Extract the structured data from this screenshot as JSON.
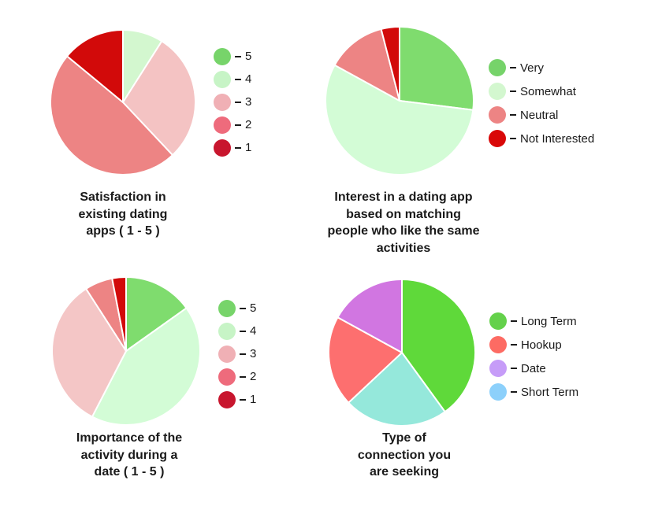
{
  "chart_data": [
    {
      "type": "pie",
      "title": "Satisfaction in existing dating apps ( 1 - 5 )",
      "title_lines": [
        "Satisfaction in",
        "existing dating",
        "apps ( 1 - 5 )"
      ],
      "labels": [
        "5",
        "4",
        "3",
        "2",
        "1"
      ],
      "values": [
        0,
        9,
        29,
        48,
        14
      ],
      "colors": [
        "#77d46a",
        "#d3f7cf",
        "#f4c3c3",
        "#ed8484",
        "#d20a0a"
      ],
      "legend_colors": [
        "#77d46a",
        "#c7f4c6",
        "#f0b0b5",
        "#ee6b7c",
        "#c8162e"
      ],
      "start_angle_deg": 0
    },
    {
      "type": "pie",
      "title": "Interest in a dating app based on matching people who like the same activities",
      "title_lines": [
        "Interest in a dating app",
        "based on matching",
        "people who like the same",
        "activities"
      ],
      "labels": [
        "Very",
        "Somewhat",
        "Neutral",
        "Not Interested"
      ],
      "values": [
        27,
        56,
        13,
        4
      ],
      "colors": [
        "#7fdc6e",
        "#d3fcd6",
        "#ed8484",
        "#d20a0a"
      ],
      "legend_colors": [
        "#76d36a",
        "#d3f7cf",
        "#ed8484",
        "#d90808"
      ],
      "start_angle_deg": 0
    },
    {
      "type": "pie",
      "title": "Importance of the activity during a date ( 1 - 5 )",
      "title_lines": [
        "Importance of the",
        "activity during a",
        "date ( 1 - 5 )"
      ],
      "labels": [
        "5",
        "4",
        "3",
        "2",
        "1"
      ],
      "values": [
        15,
        42,
        33,
        6,
        3
      ],
      "colors": [
        "#7fdc6e",
        "#d3fcd6",
        "#f4c6c6",
        "#ed8484",
        "#d20a0a"
      ],
      "legend_colors": [
        "#77d46a",
        "#c7f4c6",
        "#f0b0b5",
        "#ee6b7c",
        "#c8162e"
      ],
      "start_angle_deg": 0
    },
    {
      "type": "pie",
      "title": "Type of connection you are seeking",
      "title_lines": [
        "Type of",
        "connection you",
        "are seeking"
      ],
      "labels": [
        "Long Term",
        "Hookup",
        "Date",
        "Short Term"
      ],
      "values": [
        40,
        20,
        17,
        23
      ],
      "slice_order": [
        0,
        3,
        1,
        2
      ],
      "colors": [
        "#5fd93a",
        "#95e8db",
        "#fd6f6f",
        "#d176e1"
      ],
      "legend_colors": [
        "#64d14b",
        "#fd6b63",
        "#c69cf8",
        "#8cd0fb"
      ],
      "start_angle_deg": 0
    }
  ]
}
